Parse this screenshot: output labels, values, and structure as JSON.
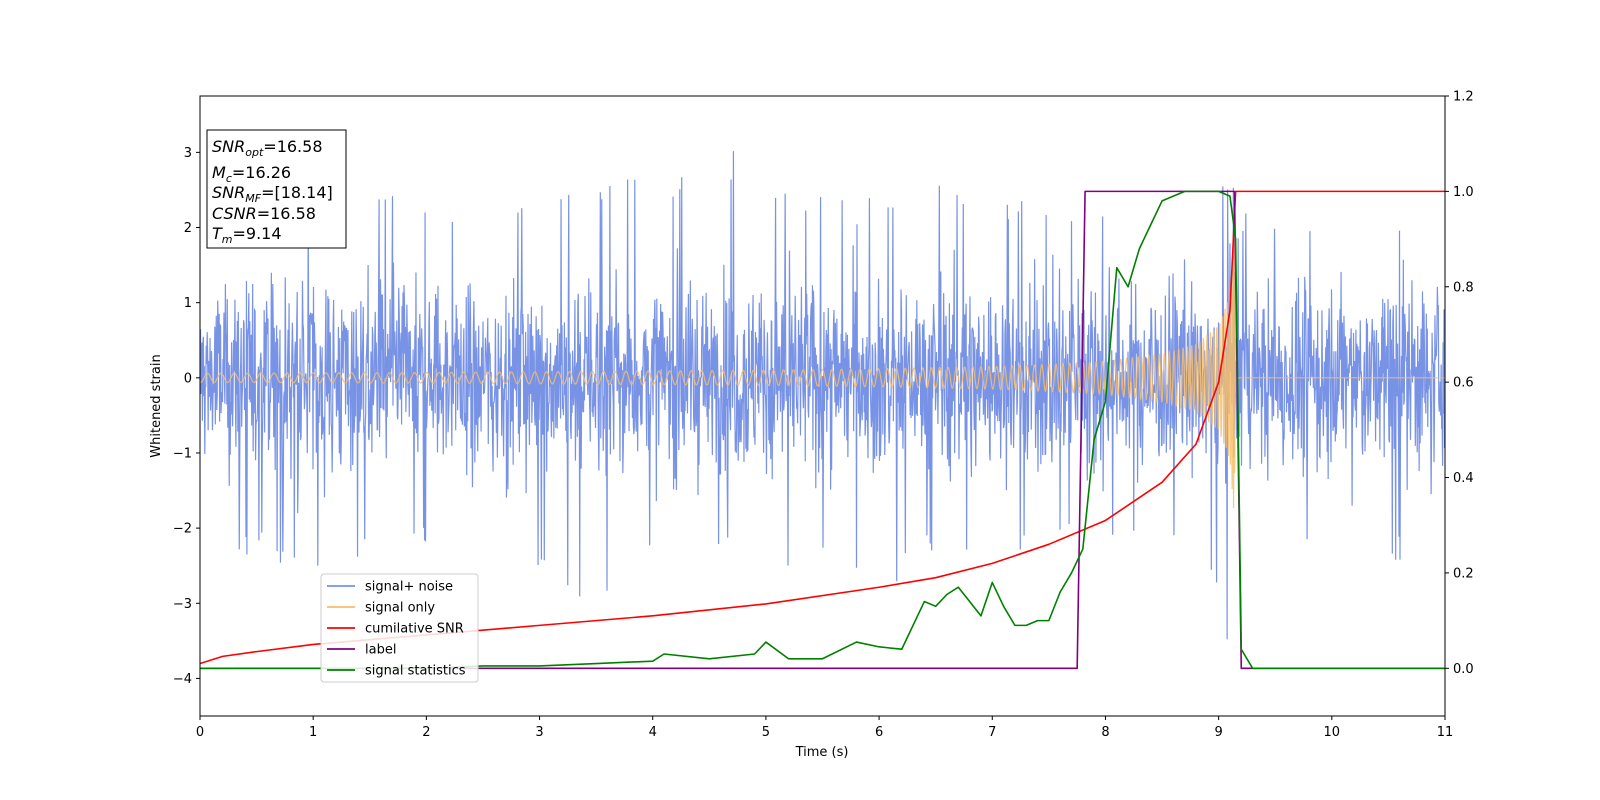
{
  "chart_data": {
    "type": "line",
    "xlabel": "Time (s)",
    "ylabel_left": "Whitened strain",
    "ylabel_right": "",
    "xlim": [
      0,
      11
    ],
    "ylim_left": [
      -4.5,
      3.75
    ],
    "ylim_right": [
      -0.1,
      1.2
    ],
    "x_ticks": [
      "0",
      "1",
      "2",
      "3",
      "4",
      "5",
      "6",
      "7",
      "8",
      "9",
      "10",
      "11"
    ],
    "y_ticks_left": [
      "−4",
      "−3",
      "−2",
      "−1",
      "0",
      "1",
      "2",
      "3"
    ],
    "y_ticks_right": [
      "0.0",
      "0.2",
      "0.4",
      "0.6",
      "0.8",
      "1.0",
      "1.2"
    ],
    "grid": false,
    "legend_placement": "lower-left",
    "series": [
      {
        "name": "signal+ noise",
        "axis": "left",
        "color": "#7893e6",
        "description_range": [
          -2.8,
          3.3
        ],
        "x": [
          0,
          0.5,
          1,
          1.5,
          2,
          2.5,
          3,
          3.5,
          4,
          4.5,
          4.82,
          5,
          5.5,
          6,
          6.5,
          7,
          7.5,
          8,
          8.5,
          9,
          9.13,
          9.2,
          9.5,
          10,
          10.5,
          11
        ],
        "y_upper": [
          2.0,
          2.2,
          2.3,
          2.5,
          2.4,
          2.3,
          2.4,
          2.5,
          2.8,
          2.6,
          3.35,
          2.7,
          2.4,
          2.4,
          2.6,
          2.5,
          2.4,
          2.4,
          2.6,
          2.6,
          2.7,
          2.3,
          2.1,
          2.2,
          2.2,
          2.0
        ],
        "y_lower": [
          -2.2,
          -2.4,
          -2.6,
          -2.5,
          -2.3,
          -2.7,
          -2.6,
          -3.05,
          -2.4,
          -2.3,
          -2.5,
          -2.6,
          -2.4,
          -2.9,
          -2.3,
          -2.5,
          -2.2,
          -2.4,
          -2.3,
          -2.8,
          -4.15,
          -2.3,
          -2.2,
          -2.3,
          -2.5,
          -2.4
        ]
      },
      {
        "name": "signal only",
        "axis": "left",
        "color": "#f7bd6a",
        "x": [
          0,
          1,
          2,
          3,
          4,
          5,
          6,
          7,
          7.5,
          8,
          8.5,
          8.8,
          9.0,
          9.1,
          9.14,
          9.15,
          11
        ],
        "envelope": [
          0.06,
          0.065,
          0.07,
          0.08,
          0.09,
          0.1,
          0.12,
          0.15,
          0.18,
          0.22,
          0.32,
          0.45,
          0.7,
          1.1,
          1.9,
          0.0,
          0.0
        ]
      },
      {
        "name": "cumilative SNR",
        "axis": "right",
        "color": "#ff0000",
        "x": [
          0,
          0.2,
          0.5,
          1,
          2,
          3,
          4,
          5,
          6,
          6.5,
          7,
          7.5,
          8,
          8.5,
          8.8,
          9.0,
          9.1,
          9.13,
          9.15,
          11
        ],
        "y": [
          0.01,
          0.025,
          0.035,
          0.05,
          0.07,
          0.09,
          0.11,
          0.135,
          0.17,
          0.19,
          0.22,
          0.26,
          0.31,
          0.39,
          0.47,
          0.6,
          0.75,
          0.9,
          1.0,
          1.0
        ]
      },
      {
        "name": "label",
        "axis": "right",
        "color": "#800080",
        "x": [
          0,
          7.75,
          7.82,
          9.14,
          9.2,
          11
        ],
        "y": [
          0.0,
          0.0,
          1.0,
          1.0,
          0.0,
          0.0
        ]
      },
      {
        "name": "signal statistics",
        "axis": "right",
        "color": "#008000",
        "x": [
          0,
          1,
          2,
          2.5,
          3,
          3.5,
          4,
          4.1,
          4.5,
          4.9,
          5.0,
          5.2,
          5.5,
          5.8,
          6.0,
          6.2,
          6.4,
          6.5,
          6.6,
          6.7,
          6.8,
          6.9,
          7.0,
          7.1,
          7.2,
          7.3,
          7.4,
          7.5,
          7.6,
          7.7,
          7.8,
          7.9,
          8.0,
          8.1,
          8.2,
          8.3,
          8.4,
          8.5,
          8.7,
          9.0,
          9.1,
          9.15,
          9.2,
          9.3,
          11
        ],
        "y": [
          0.0,
          0.0,
          0.0,
          0.005,
          0.005,
          0.01,
          0.015,
          0.03,
          0.02,
          0.03,
          0.055,
          0.02,
          0.02,
          0.055,
          0.045,
          0.04,
          0.14,
          0.13,
          0.155,
          0.17,
          0.14,
          0.11,
          0.18,
          0.13,
          0.09,
          0.09,
          0.1,
          0.1,
          0.16,
          0.2,
          0.25,
          0.48,
          0.56,
          0.84,
          0.8,
          0.88,
          0.93,
          0.98,
          1.0,
          1.0,
          0.99,
          0.9,
          0.04,
          0.0,
          0.0
        ]
      }
    ],
    "info_box": {
      "snr_opt_base": "SNR",
      "snr_opt_sub": "opt",
      "snr_opt_value": "=16.58",
      "mc_base": "M",
      "mc_sub": "c",
      "mc_value": "=16.26",
      "snr_mf_base": "SNR",
      "snr_mf_sub": "MF",
      "snr_mf_value": "=[18.14]",
      "csnr_base": "CSNR",
      "csnr_value": "=16.58",
      "tm_base": "T",
      "tm_sub": "m",
      "tm_value": "=9.14"
    }
  }
}
